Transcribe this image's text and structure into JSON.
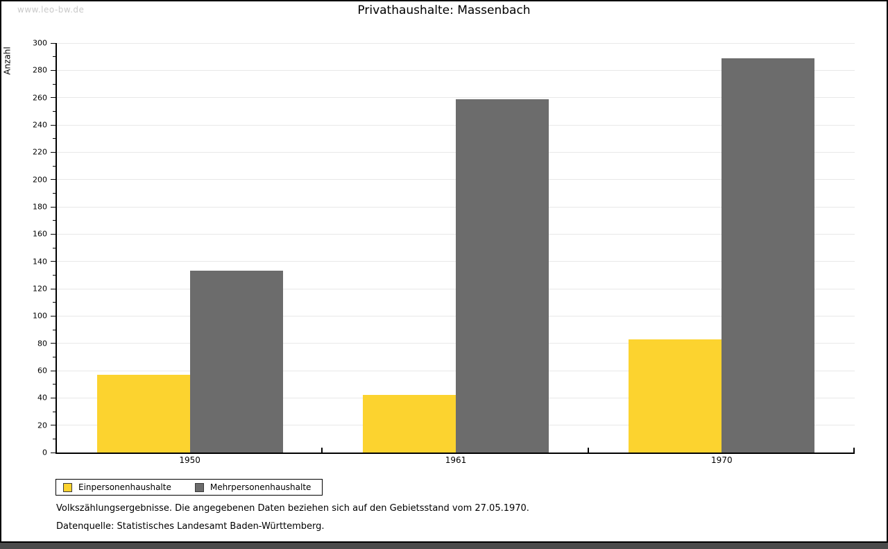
{
  "watermark": "www.leo-bw.de",
  "chart_data": {
    "type": "bar",
    "title": "Privathaushalte: Massenbach",
    "categories": [
      "1950",
      "1961",
      "1970"
    ],
    "series": [
      {
        "name": "Einpersonenhaushalte",
        "color": "#fcd32f",
        "values": [
          57,
          42,
          83
        ]
      },
      {
        "name": "Mehrpersonenhaushalte",
        "color": "#6c6c6c",
        "values": [
          133,
          259,
          289
        ]
      }
    ],
    "xlabel": "",
    "ylabel": "Anzahl",
    "ylim": [
      0,
      300
    ],
    "ytick_step": 20,
    "yminor_step": 10,
    "grid": true,
    "legend_position": "bottom-left"
  },
  "footnotes": [
    "Volkszählungsergebnisse. Die angegebenen Daten beziehen sich auf den Gebietsstand vom 27.05.1970.",
    "Datenquelle: Statistisches Landesamt Baden-Württemberg."
  ],
  "colors": {
    "series_1": "#fcd32f",
    "series_2": "#6c6c6c",
    "gridline": "#e8e8e8",
    "watermark": "#c9c9c9",
    "bottom_strip": "#4a4a4a"
  }
}
